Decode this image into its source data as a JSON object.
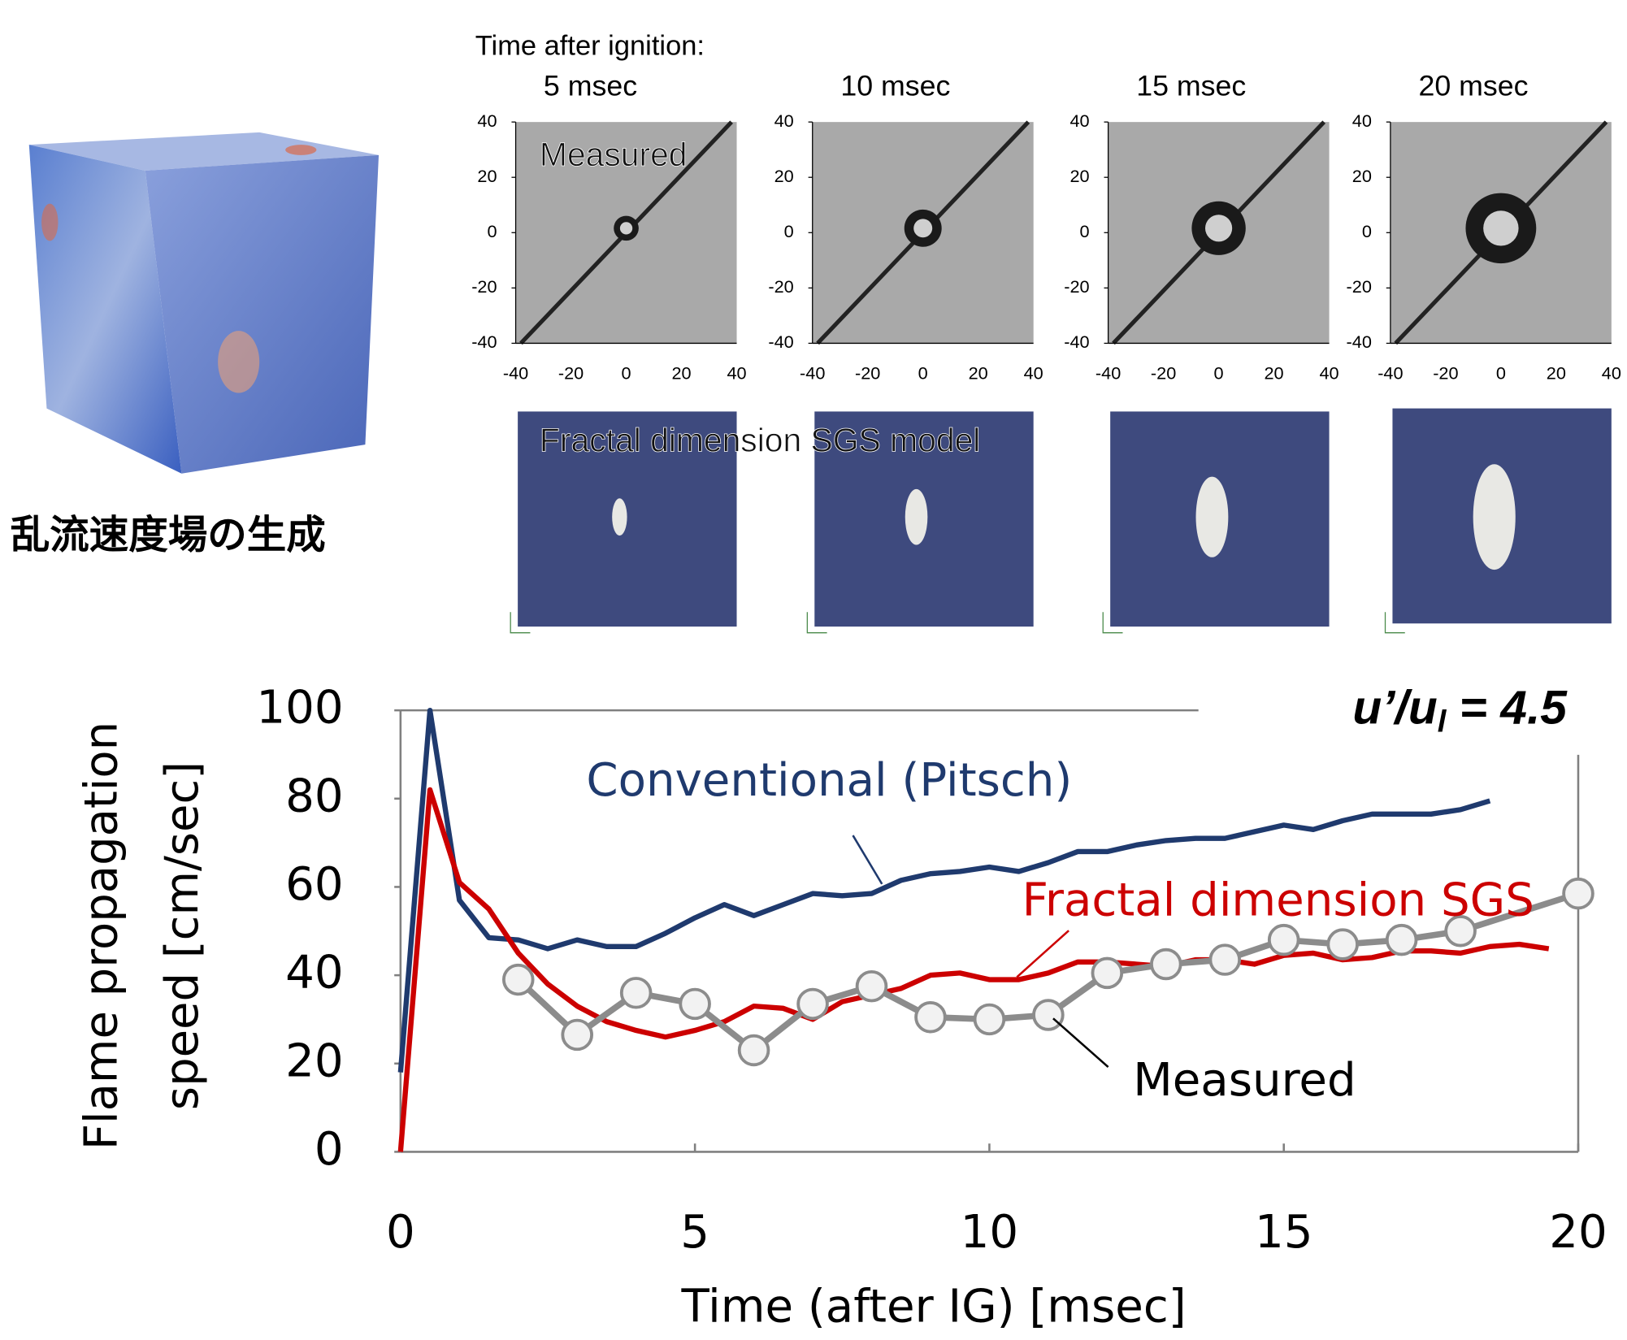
{
  "slide": {
    "header": "Time  after ignition:",
    "measured_label": "Measured",
    "model_label": "Fractal dimension SGS model",
    "cube_caption": "乱流速度場の生成",
    "panels": [
      "5 msec",
      "10 msec",
      "15 msec",
      "20 msec"
    ],
    "panel_ticks": [
      -40,
      -20,
      0,
      20,
      40
    ]
  },
  "chart_data": {
    "type": "line",
    "ylabel_lines": [
      "Flame propagation",
      "speed [cm/sec]"
    ],
    "xlabel": "Time (after IG) [msec]",
    "annotation": {
      "text": "u’/u",
      "sub": "l",
      "rest": " = 4.5"
    },
    "xlim": [
      0,
      20
    ],
    "xticks": [
      0,
      5,
      10,
      15,
      20
    ],
    "ylim": [
      0,
      100
    ],
    "yticks": [
      0,
      20,
      40,
      60,
      80,
      100
    ],
    "series": [
      {
        "name": "Conventional (Pitsch)",
        "color": "#1f3a6e",
        "markers": false,
        "x": [
          0,
          0.5,
          1,
          1.5,
          2,
          2.5,
          3,
          3.5,
          4,
          4.5,
          5,
          5.5,
          6,
          6.5,
          7,
          7.5,
          8,
          8.5,
          9,
          9.5,
          10,
          10.5,
          11,
          11.5,
          12,
          12.5,
          13,
          13.5,
          14,
          14.5,
          15,
          15.5,
          16,
          16.5,
          17,
          17.5,
          18,
          18.5
        ],
        "values": [
          18,
          100,
          57,
          48.5,
          48,
          46,
          48,
          46.5,
          46.5,
          49.5,
          53,
          56,
          53.5,
          56,
          58.5,
          58,
          58.5,
          61.5,
          63,
          63.5,
          64.5,
          63.5,
          65.5,
          68,
          68,
          69.5,
          70.5,
          71,
          71,
          72.5,
          74,
          73,
          75,
          76.5,
          76.5,
          76.5,
          77.5,
          79.5
        ]
      },
      {
        "name": "Fractal dimension SGS",
        "color": "#cc0000",
        "markers": false,
        "x": [
          0,
          0.5,
          1,
          1.5,
          2,
          2.5,
          3,
          3.5,
          4,
          4.5,
          5,
          5.5,
          6,
          6.5,
          7,
          7.5,
          8,
          8.5,
          9,
          9.5,
          10,
          10.5,
          11,
          11.5,
          12,
          12.5,
          13,
          13.5,
          14,
          14.5,
          15,
          15.5,
          16,
          16.5,
          17,
          17.5,
          18,
          18.5,
          19,
          19.5
        ],
        "values": [
          0,
          82,
          61,
          55,
          45,
          38,
          33,
          29.5,
          27.5,
          26,
          27.5,
          29.5,
          33,
          32.5,
          30,
          34,
          35.5,
          37,
          40,
          40.5,
          39,
          39,
          40.5,
          43,
          43,
          42.5,
          42,
          43.5,
          43.5,
          42.5,
          44.5,
          45,
          43.5,
          44,
          45.5,
          45.5,
          45,
          46.5,
          47,
          46
        ]
      },
      {
        "name": "Measured",
        "color": "#8c8c8c",
        "markers": true,
        "x": [
          2,
          3,
          4,
          5,
          6,
          7,
          8,
          9,
          10,
          11,
          12,
          13,
          14,
          15,
          16,
          17,
          18,
          20
        ],
        "values": [
          39,
          26.5,
          36,
          33.5,
          23,
          33.5,
          37.5,
          30.5,
          30,
          31,
          40.5,
          42.5,
          43.5,
          48,
          47,
          48,
          50,
          58.5
        ]
      }
    ]
  }
}
